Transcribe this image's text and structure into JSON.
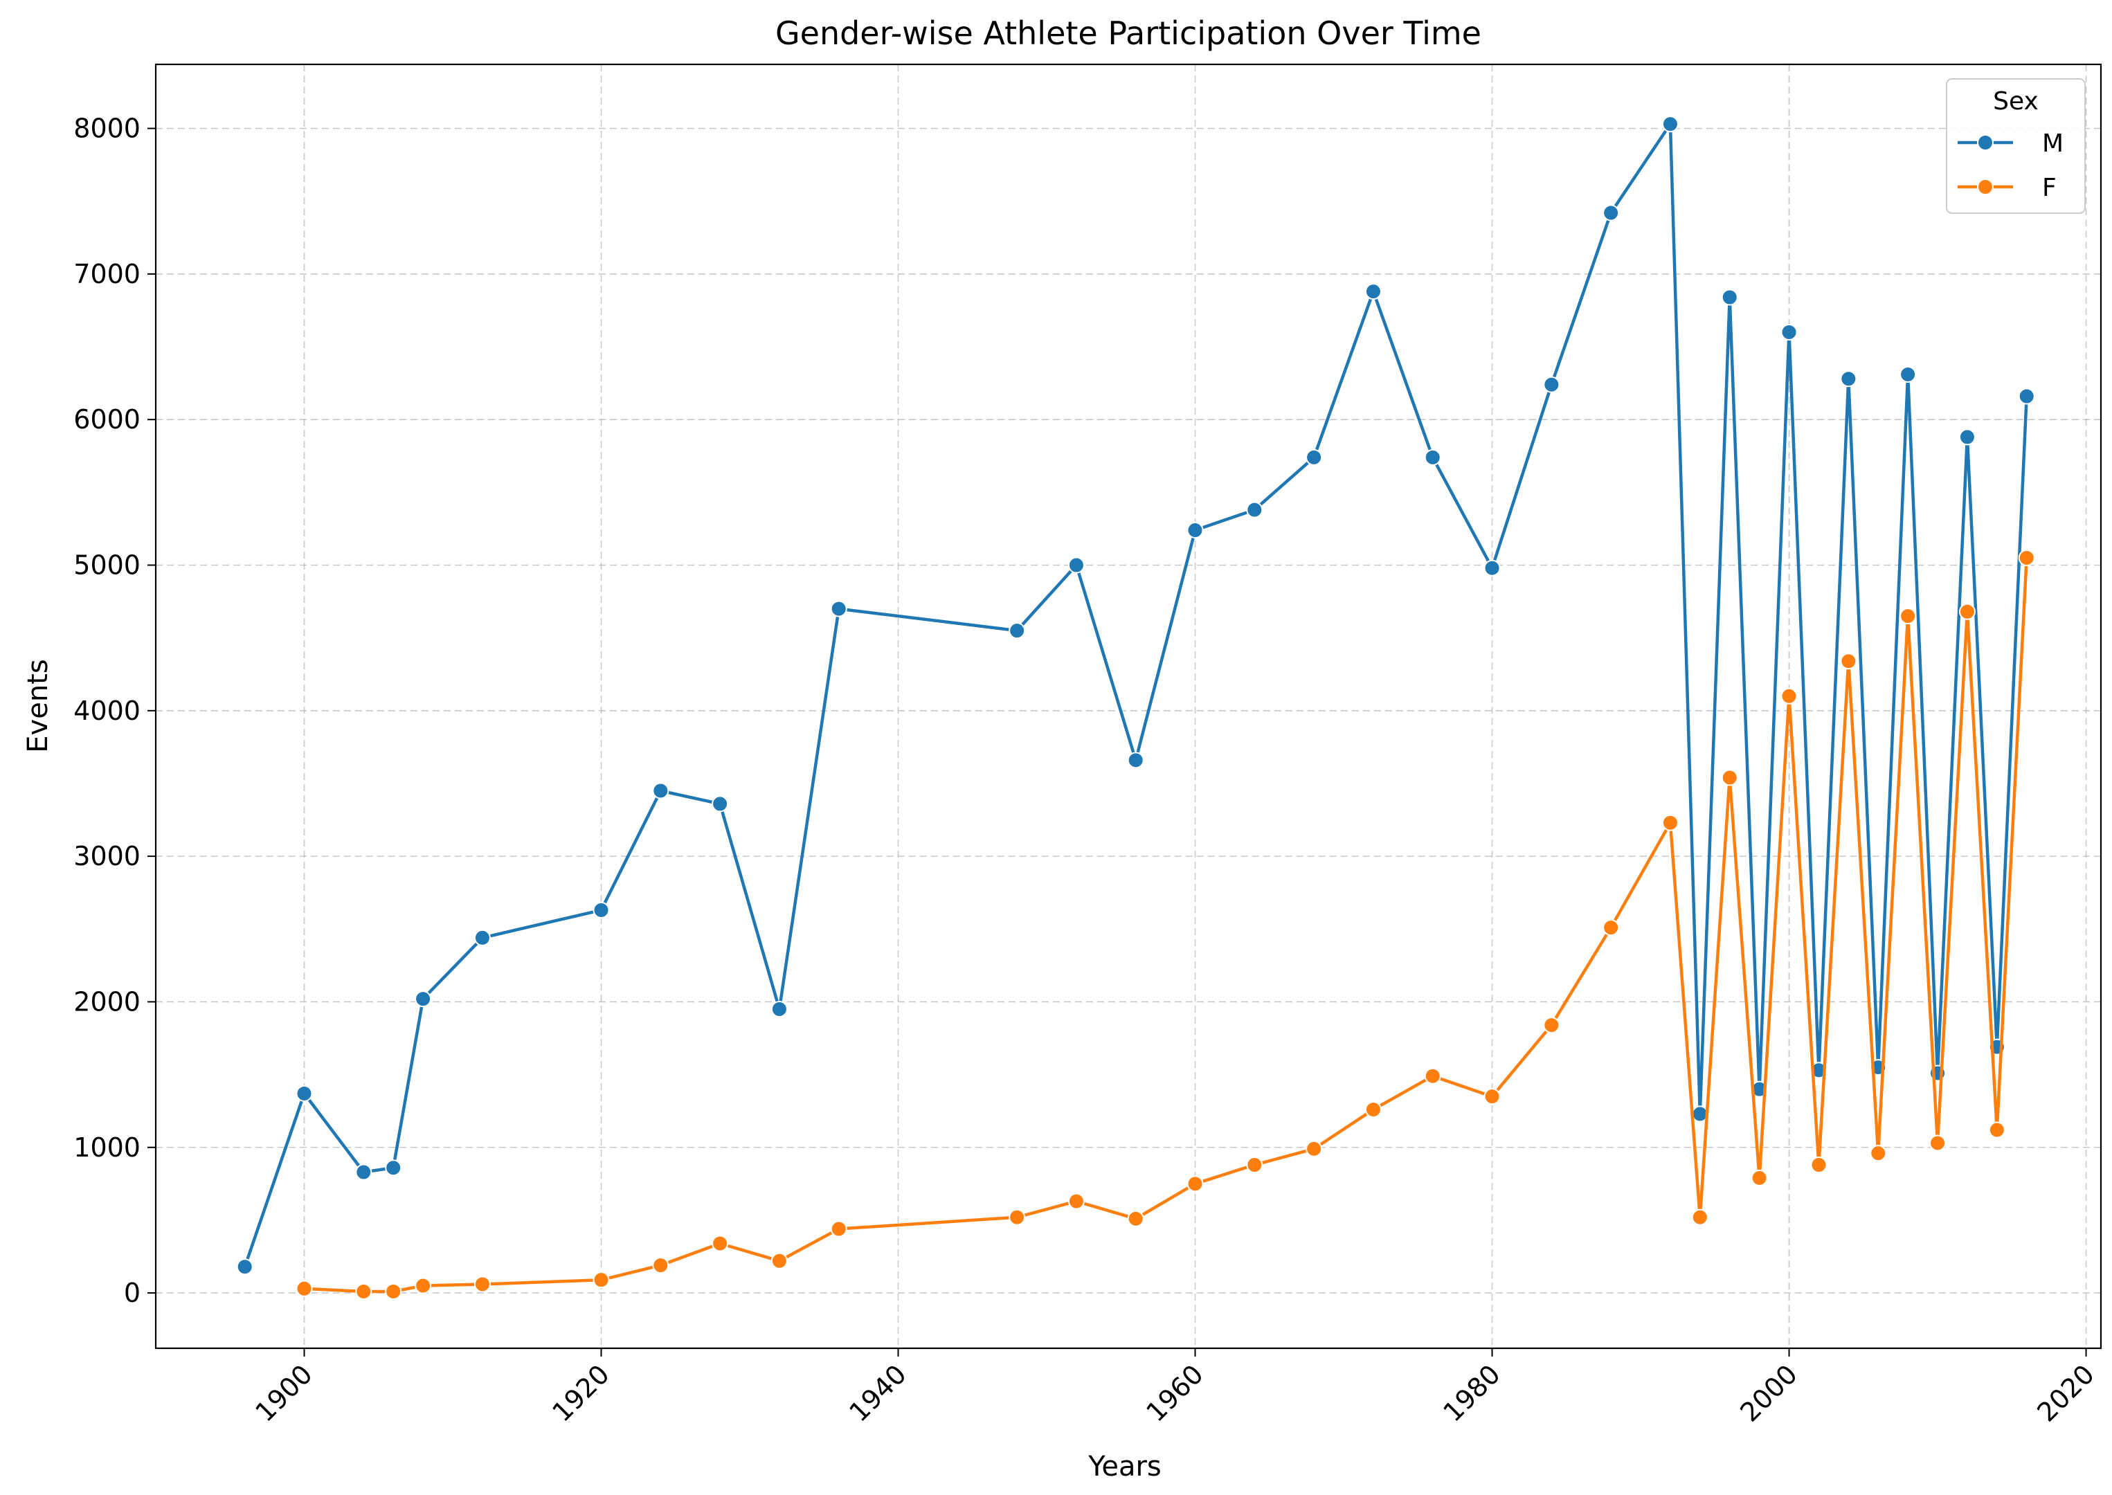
{
  "chart_data": {
    "type": "line",
    "title": "Gender-wise Athlete Participation Over Time",
    "xlabel": "Years",
    "ylabel": "Events",
    "xlim": [
      1890,
      2021
    ],
    "ylim": [
      -380,
      8440
    ],
    "xticks": [
      1900,
      1920,
      1940,
      1960,
      1980,
      2000,
      2020
    ],
    "yticks": [
      0,
      1000,
      2000,
      3000,
      4000,
      5000,
      6000,
      7000,
      8000
    ],
    "grid": true,
    "legend": {
      "title": "Sex",
      "position": "top-right"
    },
    "series": [
      {
        "name": "M",
        "color": "#1f77b4",
        "x": [
          1896,
          1900,
          1904,
          1906,
          1908,
          1912,
          1920,
          1924,
          1928,
          1932,
          1936,
          1948,
          1952,
          1956,
          1960,
          1964,
          1968,
          1972,
          1976,
          1980,
          1984,
          1988,
          1992,
          1994,
          1996,
          1998,
          2000,
          2002,
          2004,
          2006,
          2008,
          2010,
          2012,
          2014,
          2016
        ],
        "y": [
          180,
          1370,
          830,
          860,
          2020,
          2440,
          2630,
          3450,
          3360,
          1950,
          4700,
          4550,
          5000,
          3660,
          5240,
          5380,
          5740,
          6880,
          5740,
          4980,
          6240,
          7420,
          8030,
          1230,
          6840,
          1400,
          6600,
          1530,
          6280,
          1550,
          6310,
          1510,
          5880,
          1690,
          6160
        ]
      },
      {
        "name": "F",
        "color": "#ff7f0e",
        "x": [
          1900,
          1904,
          1906,
          1908,
          1912,
          1920,
          1924,
          1928,
          1932,
          1936,
          1948,
          1952,
          1956,
          1960,
          1964,
          1968,
          1972,
          1976,
          1980,
          1984,
          1988,
          1992,
          1994,
          1996,
          1998,
          2000,
          2002,
          2004,
          2006,
          2008,
          2010,
          2012,
          2014,
          2016
        ],
        "y": [
          30,
          10,
          10,
          50,
          60,
          90,
          190,
          340,
          220,
          440,
          520,
          630,
          510,
          750,
          880,
          990,
          1260,
          1490,
          1350,
          1840,
          2510,
          3230,
          520,
          3540,
          790,
          4100,
          880,
          4340,
          960,
          4650,
          1030,
          4680,
          1120,
          5050
        ]
      }
    ]
  }
}
